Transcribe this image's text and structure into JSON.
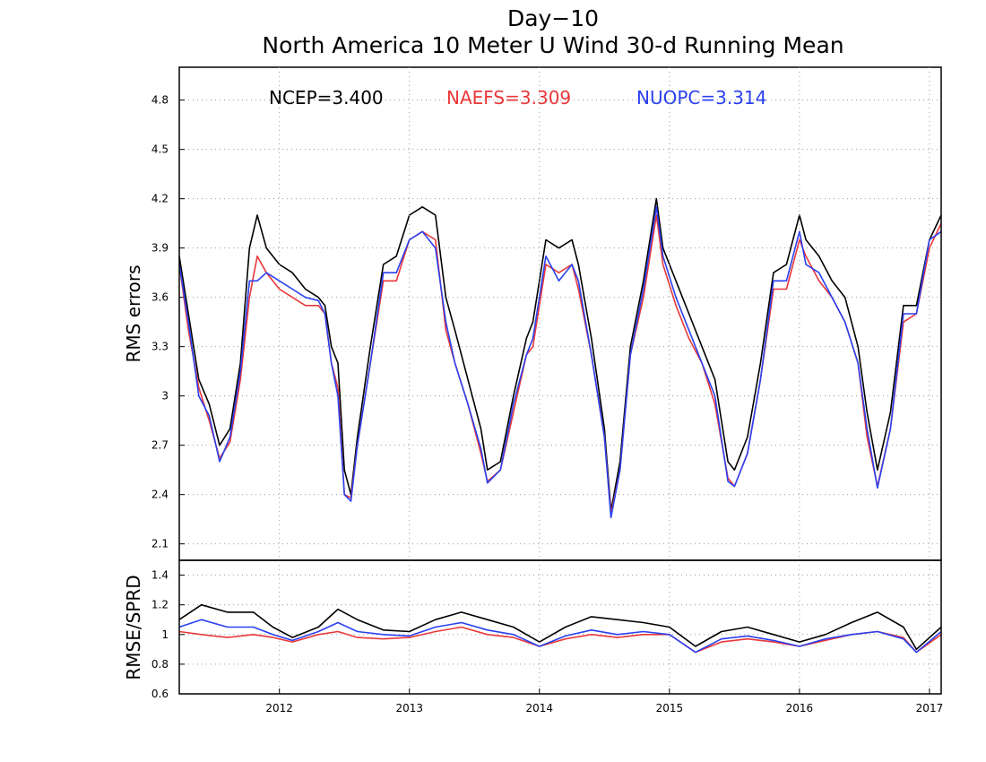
{
  "chart_data": [
    {
      "type": "line",
      "title": "Day−10",
      "subtitle": "North America 10 Meter U Wind 30-d Running Mean",
      "ylabel": "RMS errors",
      "xlabel": "",
      "ylim": [
        2.0,
        5.0
      ],
      "yticks": [
        "4.8",
        "4.5",
        "4.2",
        "3.9",
        "3.6",
        "3.3",
        "3",
        "2.7",
        "2.4",
        "2.1"
      ],
      "ytick_values": [
        4.8,
        4.5,
        4.2,
        3.9,
        3.6,
        3.3,
        3.0,
        2.7,
        2.4,
        2.1
      ],
      "xlim": [
        2011.23,
        2017.09
      ],
      "grid": true,
      "legend_placement": "top",
      "legend": [
        {
          "label": "NCEP=3.400",
          "color": "#000000"
        },
        {
          "label": "NAEFS=3.309",
          "color": "#e8383a"
        },
        {
          "label": "NUOPC=3.314",
          "color": "#2a40f0"
        }
      ],
      "series": [
        {
          "color": "#000000",
          "x": [
            2011.23,
            2011.3,
            2011.38,
            2011.46,
            2011.54,
            2011.62,
            2011.7,
            2011.77,
            2011.83,
            2011.9,
            2012.0,
            2012.1,
            2012.2,
            2012.3,
            2012.35,
            2012.4,
            2012.45,
            2012.5,
            2012.55,
            2012.6,
            2012.7,
            2012.8,
            2012.9,
            2013.0,
            2013.1,
            2013.2,
            2013.28,
            2013.35,
            2013.45,
            2013.55,
            2013.6,
            2013.7,
            2013.8,
            2013.9,
            2013.95,
            2014.05,
            2014.15,
            2014.25,
            2014.3,
            2014.4,
            2014.5,
            2014.55,
            2014.62,
            2014.7,
            2014.8,
            2014.9,
            2014.95,
            2015.05,
            2015.15,
            2015.25,
            2015.35,
            2015.45,
            2015.5,
            2015.6,
            2015.7,
            2015.8,
            2015.9,
            2016.0,
            2016.05,
            2016.15,
            2016.25,
            2016.35,
            2016.45,
            2016.52,
            2016.6,
            2016.7,
            2016.8,
            2016.9,
            2017.0,
            2017.09
          ],
          "y": [
            3.85,
            3.5,
            3.1,
            2.95,
            2.7,
            2.8,
            3.2,
            3.9,
            4.1,
            3.9,
            3.8,
            3.75,
            3.65,
            3.6,
            3.55,
            3.3,
            3.2,
            2.55,
            2.4,
            2.75,
            3.3,
            3.8,
            3.85,
            4.1,
            4.15,
            4.1,
            3.6,
            3.4,
            3.1,
            2.8,
            2.55,
            2.6,
            3.0,
            3.35,
            3.45,
            3.95,
            3.9,
            3.95,
            3.8,
            3.35,
            2.8,
            2.3,
            2.6,
            3.3,
            3.7,
            4.2,
            3.9,
            3.7,
            3.5,
            3.3,
            3.1,
            2.6,
            2.55,
            2.75,
            3.2,
            3.75,
            3.8,
            4.1,
            3.95,
            3.85,
            3.7,
            3.6,
            3.3,
            2.9,
            2.55,
            2.9,
            3.55,
            3.55,
            3.95,
            4.1
          ]
        },
        {
          "color": "#e8383a",
          "x": [
            2011.23,
            2011.3,
            2011.38,
            2011.46,
            2011.54,
            2011.62,
            2011.7,
            2011.77,
            2011.83,
            2011.9,
            2012.0,
            2012.1,
            2012.2,
            2012.3,
            2012.35,
            2012.4,
            2012.45,
            2012.5,
            2012.55,
            2012.6,
            2012.7,
            2012.8,
            2012.9,
            2013.0,
            2013.1,
            2013.2,
            2013.28,
            2013.35,
            2013.45,
            2013.55,
            2013.6,
            2013.7,
            2013.8,
            2013.9,
            2013.95,
            2014.05,
            2014.15,
            2014.25,
            2014.3,
            2014.4,
            2014.5,
            2014.55,
            2014.62,
            2014.7,
            2014.8,
            2014.9,
            2014.95,
            2015.05,
            2015.15,
            2015.25,
            2015.35,
            2015.45,
            2015.5,
            2015.6,
            2015.7,
            2015.8,
            2015.9,
            2016.0,
            2016.05,
            2016.15,
            2016.25,
            2016.35,
            2016.45,
            2016.52,
            2016.6,
            2016.7,
            2016.8,
            2016.9,
            2017.0,
            2017.09
          ],
          "y": [
            3.8,
            3.4,
            3.05,
            2.85,
            2.62,
            2.72,
            3.1,
            3.6,
            3.85,
            3.75,
            3.65,
            3.6,
            3.55,
            3.55,
            3.5,
            3.2,
            3.05,
            2.4,
            2.38,
            2.7,
            3.2,
            3.7,
            3.7,
            3.95,
            4.0,
            3.95,
            3.4,
            3.2,
            2.95,
            2.65,
            2.48,
            2.55,
            2.9,
            3.25,
            3.3,
            3.8,
            3.75,
            3.8,
            3.65,
            3.25,
            2.75,
            2.28,
            2.55,
            3.25,
            3.6,
            4.1,
            3.8,
            3.55,
            3.35,
            3.2,
            2.95,
            2.5,
            2.45,
            2.65,
            3.1,
            3.65,
            3.65,
            3.95,
            3.85,
            3.7,
            3.6,
            3.45,
            3.2,
            2.75,
            2.45,
            2.8,
            3.45,
            3.5,
            3.9,
            4.05
          ]
        },
        {
          "color": "#2a40f0",
          "x": [
            2011.23,
            2011.3,
            2011.38,
            2011.46,
            2011.54,
            2011.62,
            2011.7,
            2011.77,
            2011.83,
            2011.9,
            2012.0,
            2012.1,
            2012.2,
            2012.3,
            2012.35,
            2012.4,
            2012.45,
            2012.5,
            2012.55,
            2012.6,
            2012.7,
            2012.8,
            2012.9,
            2013.0,
            2013.1,
            2013.2,
            2013.28,
            2013.35,
            2013.45,
            2013.55,
            2013.6,
            2013.7,
            2013.8,
            2013.9,
            2013.95,
            2014.05,
            2014.15,
            2014.25,
            2014.3,
            2014.4,
            2014.5,
            2014.55,
            2014.62,
            2014.7,
            2014.8,
            2014.9,
            2014.95,
            2015.05,
            2015.15,
            2015.25,
            2015.35,
            2015.45,
            2015.5,
            2015.6,
            2015.7,
            2015.8,
            2015.9,
            2016.0,
            2016.05,
            2016.15,
            2016.25,
            2016.35,
            2016.45,
            2016.52,
            2016.6,
            2016.7,
            2016.8,
            2016.9,
            2017.0,
            2017.09
          ],
          "y": [
            3.8,
            3.45,
            3.0,
            2.88,
            2.6,
            2.75,
            3.15,
            3.7,
            3.7,
            3.75,
            3.7,
            3.65,
            3.6,
            3.58,
            3.5,
            3.2,
            3.0,
            2.4,
            2.36,
            2.7,
            3.2,
            3.75,
            3.75,
            3.95,
            4.0,
            3.9,
            3.45,
            3.2,
            2.95,
            2.68,
            2.47,
            2.55,
            2.95,
            3.25,
            3.35,
            3.85,
            3.7,
            3.8,
            3.7,
            3.25,
            2.75,
            2.26,
            2.55,
            3.25,
            3.65,
            4.15,
            3.85,
            3.6,
            3.4,
            3.2,
            3.0,
            2.48,
            2.45,
            2.65,
            3.1,
            3.7,
            3.7,
            4.0,
            3.8,
            3.75,
            3.6,
            3.45,
            3.2,
            2.8,
            2.44,
            2.8,
            3.5,
            3.5,
            3.95,
            4.0
          ]
        }
      ]
    },
    {
      "type": "line",
      "ylabel": "RMSE/SPRD",
      "ylim": [
        0.6,
        1.5
      ],
      "yticks": [
        "1.4",
        "1.2",
        "1",
        "0.8",
        "0.6"
      ],
      "ytick_values": [
        1.4,
        1.2,
        1.0,
        0.8,
        0.6
      ],
      "xlim": [
        2011.23,
        2017.09
      ],
      "xticks": [
        "2012",
        "2013",
        "2014",
        "2015",
        "2016",
        "2017"
      ],
      "xtick_values": [
        2012,
        2013,
        2014,
        2015,
        2016,
        2017
      ],
      "grid": true,
      "series": [
        {
          "color": "#000000",
          "x": [
            2011.23,
            2011.4,
            2011.6,
            2011.8,
            2011.95,
            2012.1,
            2012.3,
            2012.45,
            2012.6,
            2012.8,
            2013.0,
            2013.2,
            2013.4,
            2013.6,
            2013.8,
            2014.0,
            2014.2,
            2014.4,
            2014.6,
            2014.8,
            2015.0,
            2015.2,
            2015.4,
            2015.6,
            2015.8,
            2016.0,
            2016.2,
            2016.4,
            2016.6,
            2016.8,
            2016.9,
            2017.09
          ],
          "y": [
            1.1,
            1.2,
            1.15,
            1.15,
            1.05,
            0.98,
            1.05,
            1.17,
            1.1,
            1.03,
            1.02,
            1.1,
            1.15,
            1.1,
            1.05,
            0.95,
            1.05,
            1.12,
            1.1,
            1.08,
            1.05,
            0.92,
            1.02,
            1.05,
            1.0,
            0.95,
            1.0,
            1.08,
            1.15,
            1.05,
            0.9,
            1.05
          ]
        },
        {
          "color": "#e8383a",
          "x": [
            2011.23,
            2011.4,
            2011.6,
            2011.8,
            2011.95,
            2012.1,
            2012.3,
            2012.45,
            2012.6,
            2012.8,
            2013.0,
            2013.2,
            2013.4,
            2013.6,
            2013.8,
            2014.0,
            2014.2,
            2014.4,
            2014.6,
            2014.8,
            2015.0,
            2015.2,
            2015.4,
            2015.6,
            2015.8,
            2016.0,
            2016.2,
            2016.4,
            2016.6,
            2016.8,
            2016.9,
            2017.09
          ],
          "y": [
            1.02,
            1.0,
            0.98,
            1.0,
            0.98,
            0.95,
            1.0,
            1.02,
            0.98,
            0.97,
            0.98,
            1.02,
            1.05,
            1.0,
            0.98,
            0.92,
            0.97,
            1.0,
            0.98,
            1.0,
            1.0,
            0.88,
            0.95,
            0.97,
            0.95,
            0.92,
            0.96,
            1.0,
            1.02,
            0.98,
            0.88,
            1.0
          ]
        },
        {
          "color": "#2a40f0",
          "x": [
            2011.23,
            2011.4,
            2011.6,
            2011.8,
            2011.95,
            2012.1,
            2012.3,
            2012.45,
            2012.6,
            2012.8,
            2013.0,
            2013.2,
            2013.4,
            2013.6,
            2013.8,
            2014.0,
            2014.2,
            2014.4,
            2014.6,
            2014.8,
            2015.0,
            2015.2,
            2015.4,
            2015.6,
            2015.8,
            2016.0,
            2016.2,
            2016.4,
            2016.6,
            2016.8,
            2016.9,
            2017.09
          ],
          "y": [
            1.05,
            1.1,
            1.05,
            1.05,
            1.0,
            0.96,
            1.02,
            1.08,
            1.02,
            1.0,
            0.99,
            1.05,
            1.08,
            1.03,
            1.0,
            0.92,
            0.99,
            1.03,
            1.0,
            1.02,
            1.0,
            0.88,
            0.97,
            0.99,
            0.96,
            0.92,
            0.97,
            1.0,
            1.02,
            0.97,
            0.88,
            1.02
          ]
        }
      ]
    }
  ]
}
